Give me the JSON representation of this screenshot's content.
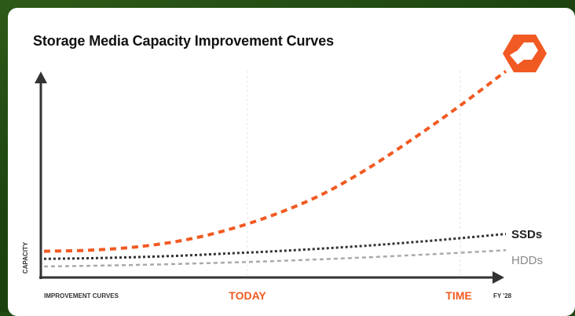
{
  "chart_data": {
    "type": "line",
    "title": "Storage Media Capacity Improvement Curves",
    "xlabel": "IMPROVEMENT CURVES",
    "ylabel": "CAPACITY",
    "x_markers": [
      {
        "label": "TODAY",
        "color": "#f15a22"
      },
      {
        "label": "TIME",
        "color": "#f15a22"
      },
      {
        "label": "FY '28",
        "color": "#333333"
      }
    ],
    "xlim": [
      0,
      100
    ],
    "ylim": [
      0,
      100
    ],
    "series": [
      {
        "name": "",
        "color": "#f15a22",
        "style": "dashed",
        "x": [
          0,
          10,
          20,
          30,
          40,
          50,
          60,
          70,
          80,
          90,
          100
        ],
        "y": [
          11,
          11.5,
          13,
          16,
          21,
          28,
          37,
          49,
          63,
          78,
          94
        ]
      },
      {
        "name": "SSDs",
        "color": "#333333",
        "style": "dotted",
        "x": [
          0,
          10,
          20,
          30,
          40,
          50,
          60,
          70,
          80,
          90,
          100
        ],
        "y": [
          7.5,
          7.8,
          8.3,
          9,
          10,
          11,
          12.2,
          13.6,
          15.2,
          17,
          19
        ]
      },
      {
        "name": "HDDs",
        "color": "#aaaaaa",
        "style": "dashed",
        "x": [
          0,
          10,
          20,
          30,
          40,
          50,
          60,
          70,
          80,
          90,
          100
        ],
        "y": [
          4,
          4.3,
          4.7,
          5.2,
          5.8,
          6.5,
          7.3,
          8.2,
          9.2,
          10.3,
          11.5
        ]
      }
    ],
    "grid": "vertical-dashed"
  },
  "logo": {
    "name": "pure-storage-logo-icon",
    "color": "#f15a22"
  }
}
